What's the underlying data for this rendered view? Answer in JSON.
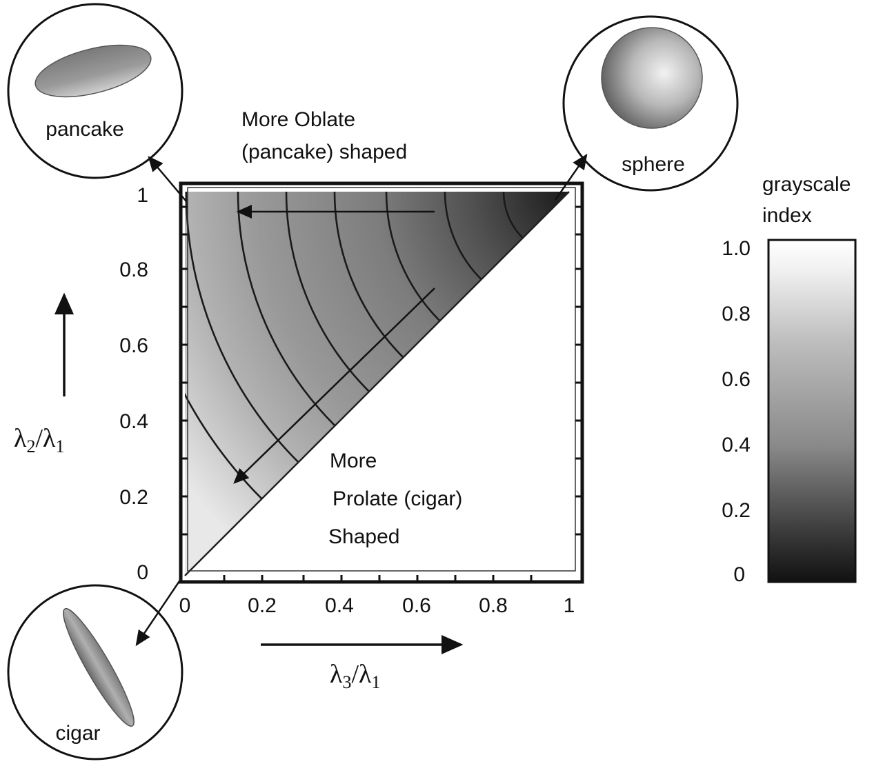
{
  "labels": {
    "pancake": "pancake",
    "sphere": "sphere",
    "cigar": "cigar",
    "oblate_line1": "More Oblate",
    "oblate_line2": "(pancake) shaped",
    "prolate_line1": "More",
    "prolate_line2": "Prolate (cigar)",
    "prolate_line3": "Shaped"
  },
  "axes": {
    "y_label_num": "λ",
    "y_label_num_sub": "2",
    "y_label_den": "λ",
    "y_label_den_sub": "1",
    "x_label_num": "λ",
    "x_label_num_sub": "3",
    "x_label_den": "λ",
    "x_label_den_sub": "1",
    "y_ticks": [
      "0",
      "0.2",
      "0.4",
      "0.6",
      "0.8",
      "1"
    ],
    "x_ticks": [
      "0",
      "0.2",
      "0.4",
      "0.6",
      "0.8",
      "1"
    ]
  },
  "colorbar": {
    "title_line1": "grayscale",
    "title_line2": "index",
    "ticks": [
      "0",
      "0.2",
      "0.4",
      "0.6",
      "0.8",
      "1.0"
    ]
  }
}
